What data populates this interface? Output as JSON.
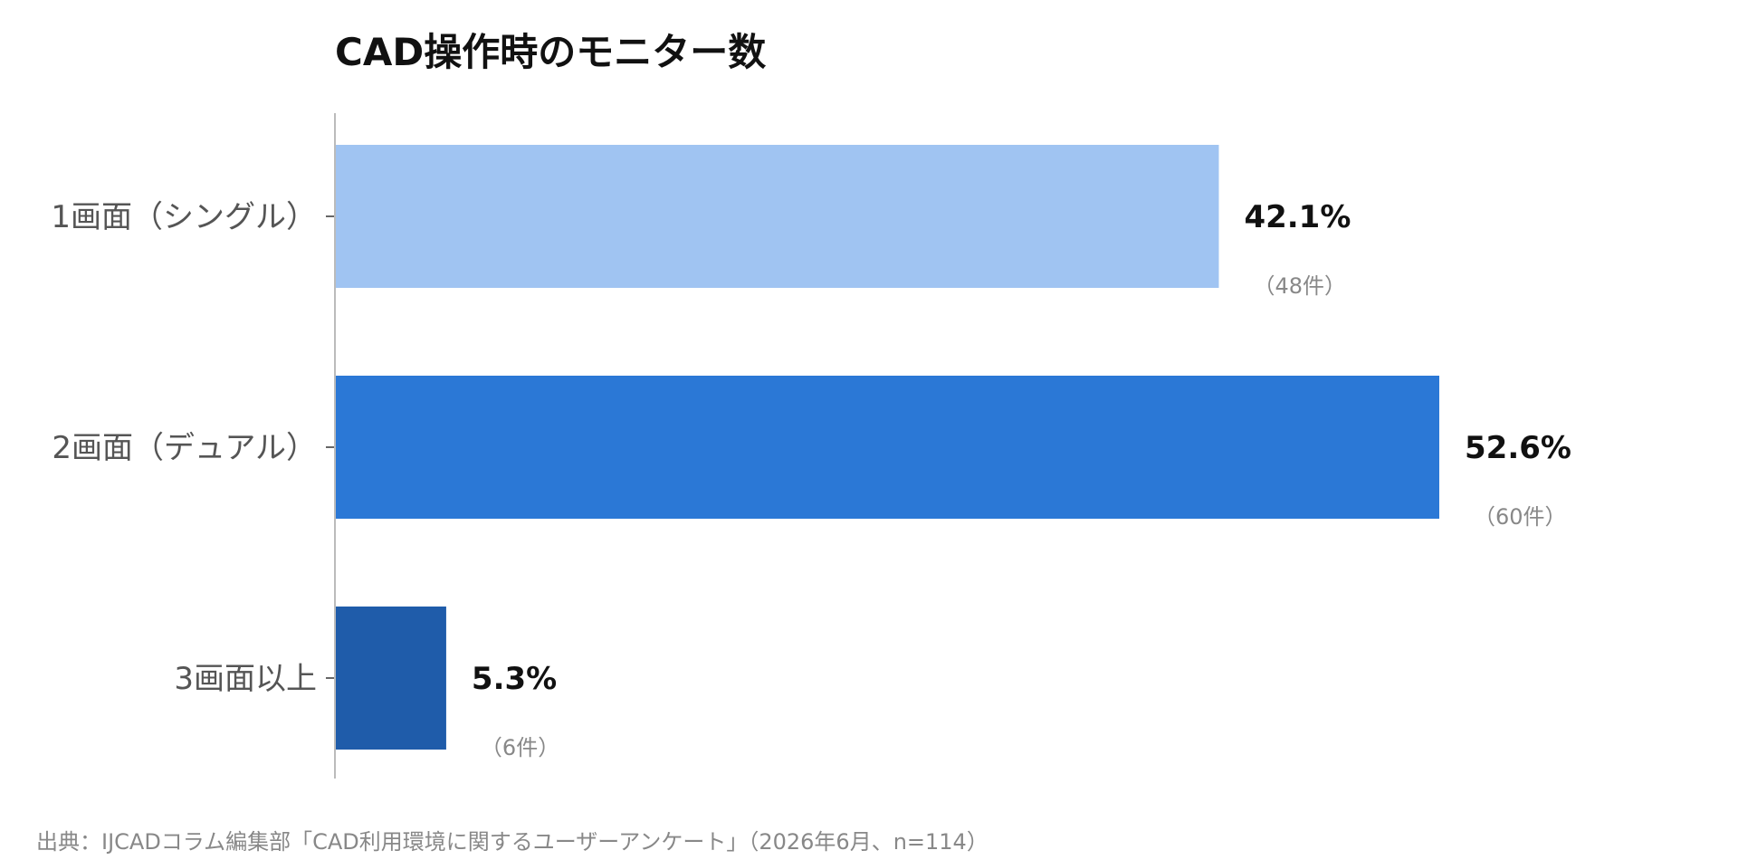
{
  "chart_data": {
    "type": "bar",
    "orientation": "horizontal",
    "title": "CAD操作時のモニター数",
    "categories": [
      "1画面（シングル）",
      "2画面（デュアル）",
      "3画面以上"
    ],
    "values": [
      42.1,
      52.6,
      5.3
    ],
    "value_labels": [
      "42.1%",
      "52.6%",
      "5.3%"
    ],
    "count_labels": [
      "（48件）",
      "（60件）",
      "（6件）"
    ],
    "bar_colors": [
      "#a0c4f2",
      "#2b78d6",
      "#1f5caa"
    ],
    "xlim": [
      0,
      60
    ],
    "grid": false,
    "legend": false
  },
  "source": "出典：IJCADコラム編集部「CAD利用環境に関するユーザーアンケート」（2026年6月、n=114）"
}
